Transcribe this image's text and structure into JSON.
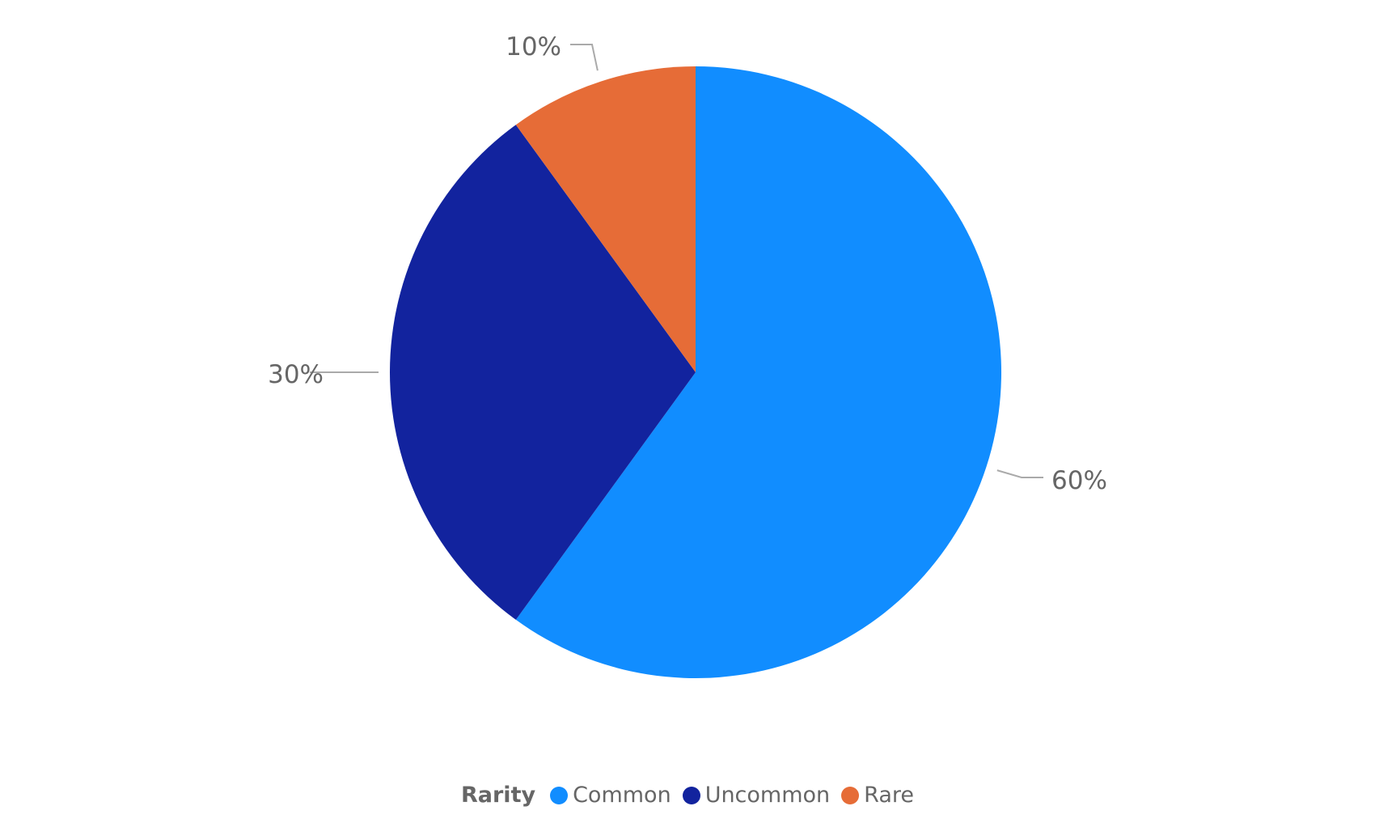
{
  "chart_data": {
    "type": "pie",
    "title": "",
    "legend": {
      "title": "Rarity",
      "position": "bottom-center"
    },
    "categories": [
      "Common",
      "Uncommon",
      "Rare"
    ],
    "values": [
      60,
      30,
      10
    ],
    "data_labels": [
      "60%",
      "30%",
      "10%"
    ],
    "colors": [
      "#118DFF",
      "#12239E",
      "#E66C37"
    ],
    "start": "top, clockwise"
  }
}
